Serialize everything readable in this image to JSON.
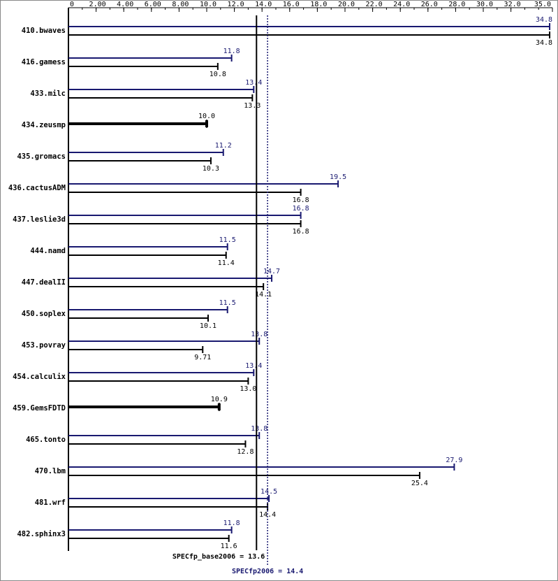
{
  "chart_data": {
    "type": "bar",
    "orientation": "horizontal",
    "categories": [
      "410.bwaves",
      "416.gamess",
      "433.milc",
      "434.zeusmp",
      "435.gromacs",
      "436.cactusADM",
      "437.leslie3d",
      "444.namd",
      "447.dealII",
      "450.soplex",
      "453.povray",
      "454.calculix",
      "459.GemsFDTD",
      "465.tonto",
      "470.lbm",
      "481.wrf",
      "482.sphinx3"
    ],
    "series": [
      {
        "color": "#191970",
        "values": [
          34.8,
          11.8,
          13.4,
          null,
          11.2,
          19.5,
          16.8,
          11.5,
          14.7,
          11.5,
          13.8,
          13.4,
          null,
          13.8,
          27.9,
          14.5,
          11.8
        ],
        "value_labels": [
          "34.8",
          "11.8",
          "13.4",
          null,
          "11.2",
          "19.5",
          "16.8",
          "11.5",
          "14.7",
          "11.5",
          "13.8",
          "13.4",
          null,
          "13.8",
          "27.9",
          "14.5",
          "11.8"
        ]
      },
      {
        "color": "#000000",
        "values": [
          34.8,
          10.8,
          13.3,
          10.0,
          10.3,
          16.8,
          16.8,
          11.4,
          14.1,
          10.1,
          9.71,
          13.0,
          10.9,
          12.8,
          25.4,
          14.4,
          11.6
        ],
        "value_labels": [
          "34.8",
          "10.8",
          "13.3",
          "10.0",
          "10.3",
          "16.8",
          "16.8",
          "11.4",
          "14.1",
          "10.1",
          "9.71",
          "13.0",
          "10.9",
          "12.8",
          "25.4",
          "14.4",
          "11.6"
        ]
      }
    ],
    "xlim": [
      0,
      35
    ],
    "xticks": [
      0,
      {
        "value": 2,
        "label": "2.00"
      },
      {
        "value": 4,
        "label": "4.00"
      },
      {
        "value": 6,
        "label": "6.00"
      },
      {
        "value": 8,
        "label": "8.00"
      },
      {
        "value": 10,
        "label": "10.0"
      },
      {
        "value": 12,
        "label": "12.0"
      },
      {
        "value": 14,
        "label": "14.0"
      },
      {
        "value": 16,
        "label": "16.0"
      },
      {
        "value": 18,
        "label": "18.0"
      },
      {
        "value": 20,
        "label": "20.0"
      },
      {
        "value": 22,
        "label": "22.0"
      },
      {
        "value": 24,
        "label": "24.0"
      },
      {
        "value": 26,
        "label": "26.0"
      },
      {
        "value": 28,
        "label": "28.0"
      },
      {
        "value": 30,
        "label": "30.0"
      },
      {
        "value": 32,
        "label": "32.0"
      },
      {
        "value": 35,
        "label": "35.0"
      }
    ],
    "reference_lines": [
      {
        "label": "SPECfp_base2006 = 13.6",
        "value": 13.6,
        "color": "#000000",
        "style": "solid"
      },
      {
        "label": "SPECfp2006 = 14.4",
        "value": 14.4,
        "color": "#191970",
        "style": "dotted"
      }
    ]
  }
}
